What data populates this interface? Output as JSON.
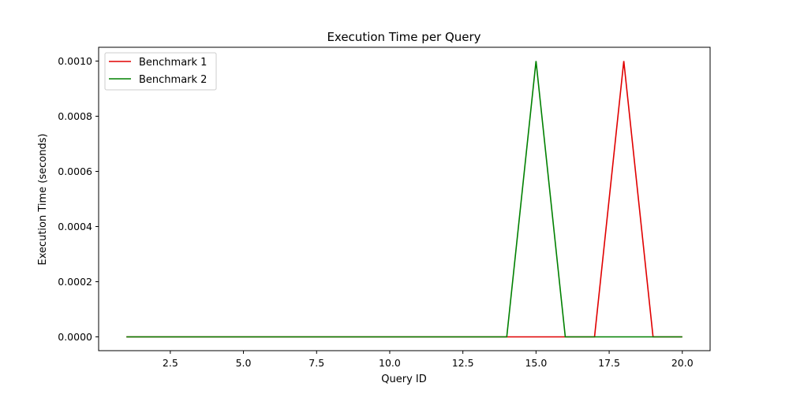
{
  "chart_data": {
    "type": "line",
    "title": "Execution Time per Query",
    "xlabel": "Query ID",
    "ylabel": "Execution Time (seconds)",
    "xlim": [
      0.05,
      20.95
    ],
    "ylim": [
      -5e-05,
      0.00105
    ],
    "x": [
      1,
      2,
      3,
      4,
      5,
      6,
      7,
      8,
      9,
      10,
      11,
      12,
      13,
      14,
      15,
      16,
      17,
      18,
      19,
      20
    ],
    "xticks": [
      2.5,
      5.0,
      7.5,
      10.0,
      12.5,
      15.0,
      17.5,
      20.0
    ],
    "xtick_labels": [
      "2.5",
      "5.0",
      "7.5",
      "10.0",
      "12.5",
      "15.0",
      "17.5",
      "20.0"
    ],
    "yticks": [
      0.0,
      0.0002,
      0.0004,
      0.0006,
      0.0008,
      0.001
    ],
    "ytick_labels": [
      "0.0000",
      "0.0002",
      "0.0004",
      "0.0006",
      "0.0008",
      "0.0010"
    ],
    "grid": false,
    "legend_position": "top-left",
    "series": [
      {
        "name": "Benchmark 1",
        "color": "#e00000",
        "values": [
          0,
          0,
          0,
          0,
          0,
          0,
          0,
          0,
          0,
          0,
          0,
          0,
          0,
          0,
          0,
          0,
          0,
          0.001,
          0,
          0
        ]
      },
      {
        "name": "Benchmark 2",
        "color": "#008000",
        "values": [
          0,
          0,
          0,
          0,
          0,
          0,
          0,
          0,
          0,
          0,
          0,
          0,
          0,
          0,
          0.001,
          0,
          0,
          0,
          0,
          0
        ]
      }
    ]
  }
}
